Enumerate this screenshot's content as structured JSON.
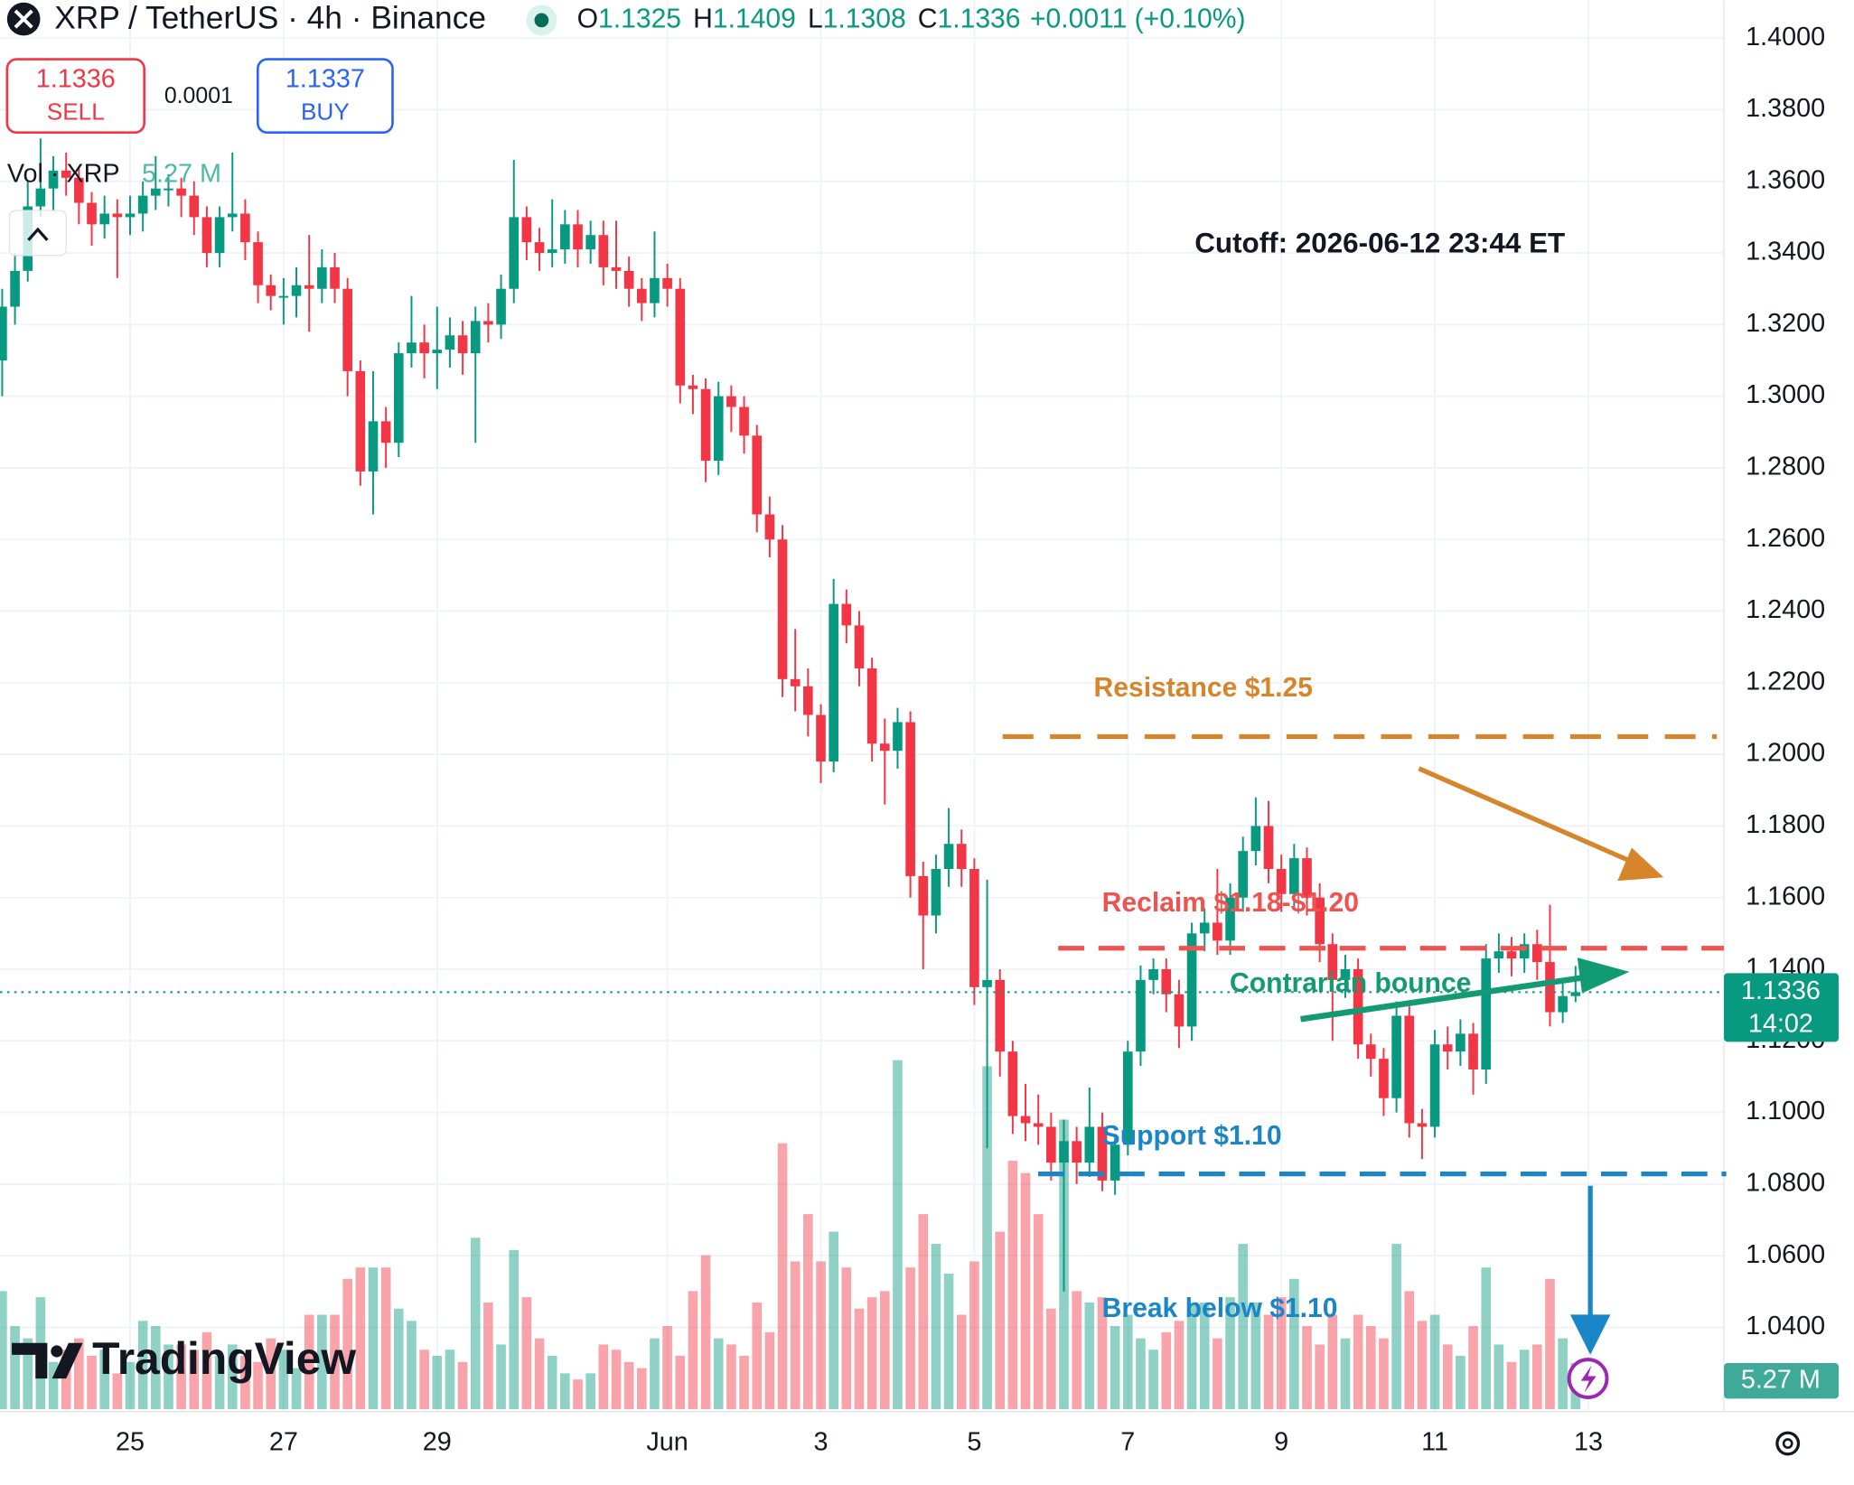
{
  "header": {
    "symbol": "XRP / TetherUS · 4h · Binance",
    "labels": [
      "O",
      "H",
      "L",
      "C"
    ],
    "change": "+0.0011 (+0.10%)"
  },
  "trade": {
    "sell_price": "1.1336",
    "sell": "SELL",
    "spread": "0.0001",
    "buy_price": "1.1337",
    "buy": "BUY"
  },
  "legend": {
    "volume_title": "Vol · XRP",
    "volume_value": "5.27 M"
  },
  "price_timer": "14:02",
  "logo": "TradingView",
  "annotations": [
    "Cutoff: 2026-06-12 23:44 ET",
    "Resistance $1.25",
    "Reclaim $1.18-$1.20",
    "Contrarian bounce",
    "Support $1.10",
    "Break below $1.10"
  ],
  "chart_data": {
    "type": "candlestick",
    "up_color": "#089981",
    "down_color": "#f23645",
    "grid": true,
    "xlim": [
      -0.17,
      134.6
    ],
    "xticks": [
      {
        "value": 10,
        "label": "25"
      },
      {
        "value": 22,
        "label": "27"
      },
      {
        "value": 34,
        "label": "29"
      },
      {
        "value": 52,
        "label": "Jun"
      },
      {
        "value": 64,
        "label": "3"
      },
      {
        "value": 76,
        "label": "5"
      },
      {
        "value": 88,
        "label": "7"
      },
      {
        "value": 100,
        "label": "9"
      },
      {
        "value": 112,
        "label": "11"
      },
      {
        "value": 124,
        "label": "13"
      }
    ],
    "ylim": [
      1.0178,
      1.4106
    ],
    "yticks": [
      {
        "value": 1.4,
        "label": "1.4000"
      },
      {
        "value": 1.38,
        "label": "1.3800"
      },
      {
        "value": 1.36,
        "label": "1.3600"
      },
      {
        "value": 1.34,
        "label": "1.3400"
      },
      {
        "value": 1.32,
        "label": "1.3200"
      },
      {
        "value": 1.3,
        "label": "1.3000"
      },
      {
        "value": 1.28,
        "label": "1.2800"
      },
      {
        "value": 1.26,
        "label": "1.2600"
      },
      {
        "value": 1.24,
        "label": "1.2400"
      },
      {
        "value": 1.22,
        "label": "1.2200"
      },
      {
        "value": 1.2,
        "label": "1.2000"
      },
      {
        "value": 1.18,
        "label": "1.1800"
      },
      {
        "value": 1.16,
        "label": "1.1600"
      },
      {
        "value": 1.14,
        "label": "1.1400"
      },
      {
        "value": 1.12,
        "label": "1.1200"
      },
      {
        "value": 1.1,
        "label": "1.1000"
      },
      {
        "value": 1.08,
        "label": "1.0800"
      },
      {
        "value": 1.06,
        "label": "1.0600"
      },
      {
        "value": 1.04,
        "label": "1.0400"
      }
    ],
    "vol_ylim": [
      0,
      80
    ],
    "open": [
      1.31,
      1.325,
      1.335,
      1.353,
      1.358,
      1.363,
      1.361,
      1.354,
      1.348,
      1.351,
      1.35,
      1.351,
      1.356,
      1.358,
      1.358,
      1.356,
      1.35,
      1.34,
      1.35,
      1.351,
      1.343,
      1.331,
      1.328,
      1.328,
      1.331,
      1.33,
      1.336,
      1.33,
      1.307,
      1.279,
      1.293,
      1.287,
      1.312,
      1.315,
      1.312,
      1.313,
      1.317,
      1.312,
      1.321,
      1.32,
      1.33,
      1.35,
      1.343,
      1.34,
      1.341,
      1.348,
      1.341,
      1.345,
      1.336,
      1.335,
      1.33,
      1.326,
      1.333,
      1.33,
      1.303,
      1.302,
      1.282,
      1.3,
      1.297,
      1.289,
      1.267,
      1.26,
      1.221,
      1.219,
      1.211,
      1.198,
      1.242,
      1.236,
      1.224,
      1.203,
      1.201,
      1.209,
      1.166,
      1.155,
      1.168,
      1.175,
      1.168,
      1.135,
      1.137,
      1.117,
      1.099,
      1.097,
      1.096,
      1.086,
      1.092,
      1.086,
      1.096,
      1.081,
      1.091,
      1.117,
      1.137,
      1.14,
      1.133,
      1.124,
      1.15,
      1.153,
      1.148,
      1.16,
      1.173,
      1.18,
      1.168,
      1.161,
      1.171,
      1.16,
      1.147,
      1.137,
      1.14,
      1.119,
      1.115,
      1.104,
      1.127,
      1.097,
      1.096,
      1.119,
      1.117,
      1.122,
      1.112,
      1.143,
      1.145,
      1.143,
      1.147,
      1.142,
      1.128,
      1.1325
    ],
    "high": [
      1.33,
      1.34,
      1.36,
      1.372,
      1.367,
      1.368,
      1.364,
      1.357,
      1.356,
      1.355,
      1.356,
      1.36,
      1.367,
      1.362,
      1.361,
      1.36,
      1.353,
      1.353,
      1.368,
      1.355,
      1.346,
      1.334,
      1.333,
      1.336,
      1.345,
      1.341,
      1.34,
      1.333,
      1.31,
      1.307,
      1.297,
      1.315,
      1.328,
      1.32,
      1.325,
      1.322,
      1.321,
      1.325,
      1.326,
      1.334,
      1.366,
      1.353,
      1.347,
      1.355,
      1.352,
      1.352,
      1.349,
      1.349,
      1.349,
      1.339,
      1.333,
      1.346,
      1.337,
      1.333,
      1.306,
      1.305,
      1.304,
      1.303,
      1.3,
      1.292,
      1.272,
      1.264,
      1.235,
      1.224,
      1.214,
      1.249,
      1.246,
      1.24,
      1.227,
      1.21,
      1.213,
      1.212,
      1.17,
      1.172,
      1.185,
      1.179,
      1.171,
      1.165,
      1.14,
      1.12,
      1.108,
      1.105,
      1.1,
      1.098,
      1.096,
      1.107,
      1.1,
      1.094,
      1.12,
      1.141,
      1.143,
      1.143,
      1.137,
      1.153,
      1.157,
      1.168,
      1.164,
      1.177,
      1.188,
      1.187,
      1.172,
      1.175,
      1.174,
      1.164,
      1.15,
      1.144,
      1.143,
      1.122,
      1.118,
      1.131,
      1.13,
      1.101,
      1.123,
      1.124,
      1.126,
      1.125,
      1.147,
      1.15,
      1.149,
      1.15,
      1.151,
      1.158,
      1.136,
      1.1409
    ],
    "low": [
      1.3,
      1.32,
      1.332,
      1.35,
      1.352,
      1.356,
      1.348,
      1.342,
      1.344,
      1.333,
      1.345,
      1.346,
      1.352,
      1.353,
      1.35,
      1.345,
      1.336,
      1.336,
      1.346,
      1.338,
      1.326,
      1.324,
      1.32,
      1.322,
      1.318,
      1.326,
      1.326,
      1.3,
      1.275,
      1.267,
      1.28,
      1.283,
      1.308,
      1.305,
      1.302,
      1.308,
      1.306,
      1.287,
      1.315,
      1.316,
      1.326,
      1.338,
      1.335,
      1.336,
      1.337,
      1.336,
      1.337,
      1.331,
      1.33,
      1.325,
      1.321,
      1.322,
      1.325,
      1.298,
      1.295,
      1.276,
      1.278,
      1.29,
      1.284,
      1.262,
      1.255,
      1.216,
      1.212,
      1.205,
      1.192,
      1.195,
      1.231,
      1.219,
      1.198,
      1.186,
      1.196,
      1.16,
      1.14,
      1.15,
      1.163,
      1.163,
      1.13,
      1.09,
      1.11,
      1.094,
      1.092,
      1.091,
      1.081,
      1.05,
      1.08,
      1.082,
      1.078,
      1.077,
      1.088,
      1.113,
      1.133,
      1.128,
      1.118,
      1.12,
      1.145,
      1.144,
      1.144,
      1.156,
      1.169,
      1.164,
      1.156,
      1.157,
      1.155,
      1.142,
      1.12,
      1.132,
      1.115,
      1.11,
      1.099,
      1.1,
      1.093,
      1.087,
      1.093,
      1.112,
      1.113,
      1.105,
      1.108,
      1.139,
      1.138,
      1.139,
      1.137,
      1.124,
      1.125,
      1.1308
    ],
    "close": [
      1.325,
      1.335,
      1.353,
      1.358,
      1.363,
      1.361,
      1.354,
      1.348,
      1.351,
      1.35,
      1.351,
      1.356,
      1.358,
      1.358,
      1.356,
      1.35,
      1.34,
      1.35,
      1.351,
      1.343,
      1.331,
      1.328,
      1.328,
      1.331,
      1.33,
      1.336,
      1.33,
      1.307,
      1.279,
      1.293,
      1.287,
      1.312,
      1.315,
      1.312,
      1.313,
      1.317,
      1.312,
      1.321,
      1.32,
      1.33,
      1.35,
      1.343,
      1.34,
      1.341,
      1.348,
      1.341,
      1.345,
      1.336,
      1.335,
      1.33,
      1.326,
      1.333,
      1.33,
      1.303,
      1.302,
      1.282,
      1.3,
      1.297,
      1.289,
      1.267,
      1.26,
      1.221,
      1.219,
      1.211,
      1.198,
      1.242,
      1.236,
      1.224,
      1.203,
      1.201,
      1.209,
      1.166,
      1.155,
      1.168,
      1.175,
      1.168,
      1.135,
      1.137,
      1.117,
      1.099,
      1.097,
      1.096,
      1.086,
      1.092,
      1.086,
      1.096,
      1.081,
      1.091,
      1.117,
      1.137,
      1.14,
      1.133,
      1.124,
      1.15,
      1.153,
      1.148,
      1.16,
      1.173,
      1.18,
      1.168,
      1.161,
      1.171,
      1.16,
      1.147,
      1.137,
      1.14,
      1.119,
      1.115,
      1.104,
      1.127,
      1.097,
      1.096,
      1.119,
      1.117,
      1.122,
      1.112,
      1.143,
      1.145,
      1.143,
      1.147,
      1.142,
      1.128,
      1.1325,
      1.1336
    ],
    "volume": [
      13.5,
      9.5,
      8.1,
      12.8,
      5.4,
      6.8,
      8.1,
      6.1,
      6.8,
      4.1,
      5.4,
      10.1,
      9.5,
      7.4,
      7.4,
      6.8,
      8.8,
      6.1,
      7.4,
      6.1,
      5.4,
      8.1,
      6.8,
      4.7,
      10.8,
      10.8,
      10.8,
      14.9,
      16.2,
      16.2,
      16.2,
      11.5,
      10.1,
      6.8,
      6.1,
      6.8,
      5.4,
      19.6,
      12.2,
      7.4,
      18.2,
      12.8,
      8.1,
      6.1,
      4.1,
      3.4,
      4.1,
      7.4,
      6.8,
      5.4,
      4.7,
      8.1,
      9.5,
      6.1,
      13.5,
      17.6,
      8.1,
      7.4,
      6.1,
      12.2,
      8.8,
      30.4,
      16.9,
      22.3,
      16.9,
      20.3,
      16.2,
      11.5,
      12.8,
      13.5,
      39.9,
      16.2,
      22.3,
      18.9,
      15.5,
      10.8,
      16.9,
      39.2,
      20.3,
      28.4,
      27.0,
      22.3,
      11.5,
      33.1,
      13.5,
      12.2,
      12.8,
      9.5,
      10.8,
      8.1,
      6.8,
      8.8,
      10.1,
      12.2,
      12.2,
      8.1,
      12.8,
      18.9,
      12.2,
      10.8,
      12.8,
      14.9,
      9.5,
      7.4,
      10.8,
      8.1,
      10.8,
      9.5,
      8.1,
      18.9,
      13.5,
      10.1,
      10.8,
      7.4,
      6.1,
      9.5,
      16.2,
      7.4,
      5.4,
      6.8,
      7.4,
      14.9,
      8.1,
      5.27
    ]
  }
}
